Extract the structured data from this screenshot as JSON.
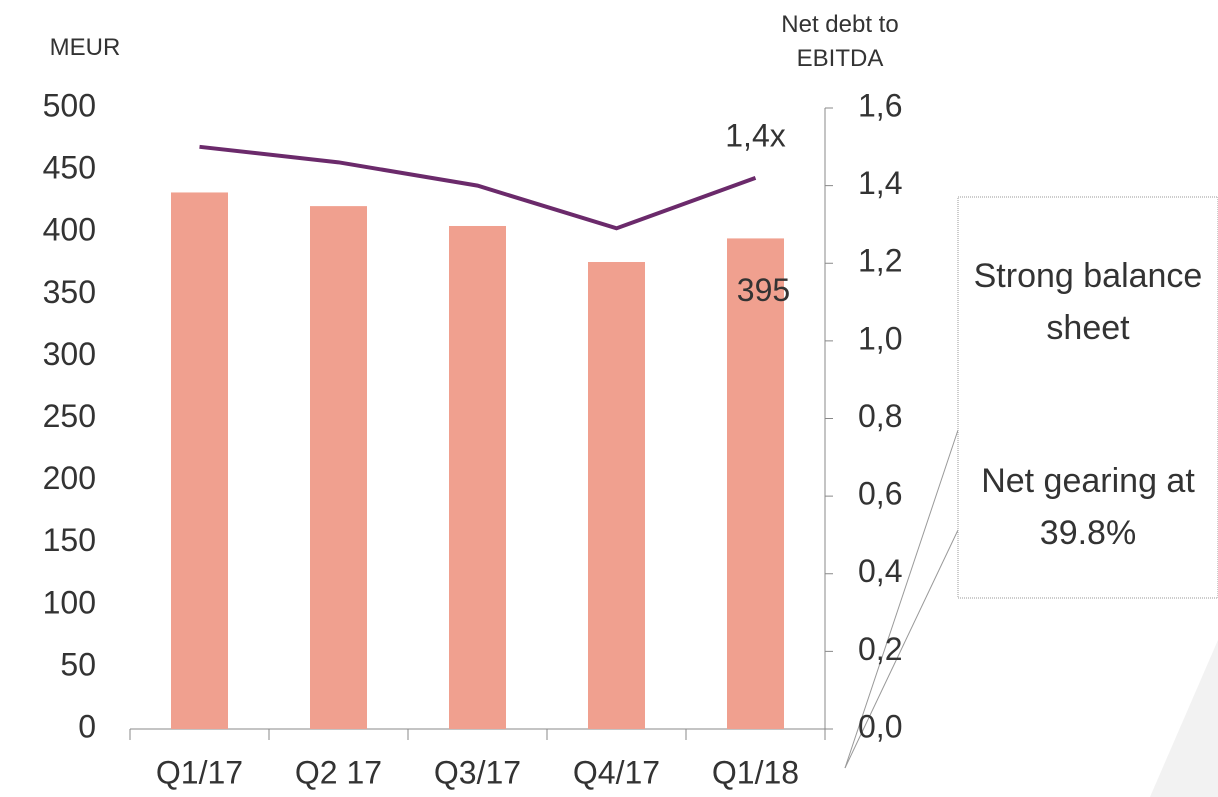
{
  "chart_data": {
    "type": "bar",
    "y_label": "MEUR",
    "y2_label": "Net debt to EBITDA",
    "categories": [
      "Q1/17",
      "Q2 17",
      "Q3/17",
      "Q4/17",
      "Q1/18"
    ],
    "series": [
      {
        "type": "bar",
        "color": "#f0a08f",
        "values": [
          432,
          421,
          405,
          376,
          395
        ],
        "value_labels": [
          null,
          null,
          null,
          null,
          "395"
        ]
      },
      {
        "type": "line",
        "axis": "y2",
        "color": "#6b2a6b",
        "values": [
          1.5,
          1.46,
          1.4,
          1.29,
          1.42
        ],
        "value_labels": [
          null,
          null,
          null,
          null,
          "1,4x"
        ]
      }
    ],
    "ylim": [
      0,
      500
    ],
    "yticks": [
      0,
      50,
      100,
      150,
      200,
      250,
      300,
      350,
      400,
      450,
      500
    ],
    "y2lim": [
      0,
      1.6
    ],
    "y2ticks": [
      {
        "value": 0,
        "label": "0,0"
      },
      {
        "value": 0.2,
        "label": "0,2"
      },
      {
        "value": 0.4,
        "label": "0,4"
      },
      {
        "value": 0.6,
        "label": "0,6"
      },
      {
        "value": 0.8,
        "label": "0,8"
      },
      {
        "value": 1.0,
        "label": "1,0"
      },
      {
        "value": 1.2,
        "label": "1,2"
      },
      {
        "value": 1.4,
        "label": "1,4"
      },
      {
        "value": 1.6,
        "label": "1,6"
      }
    ],
    "callout": [
      "Strong balance sheet",
      "Net gearing at 39.8%"
    ]
  }
}
